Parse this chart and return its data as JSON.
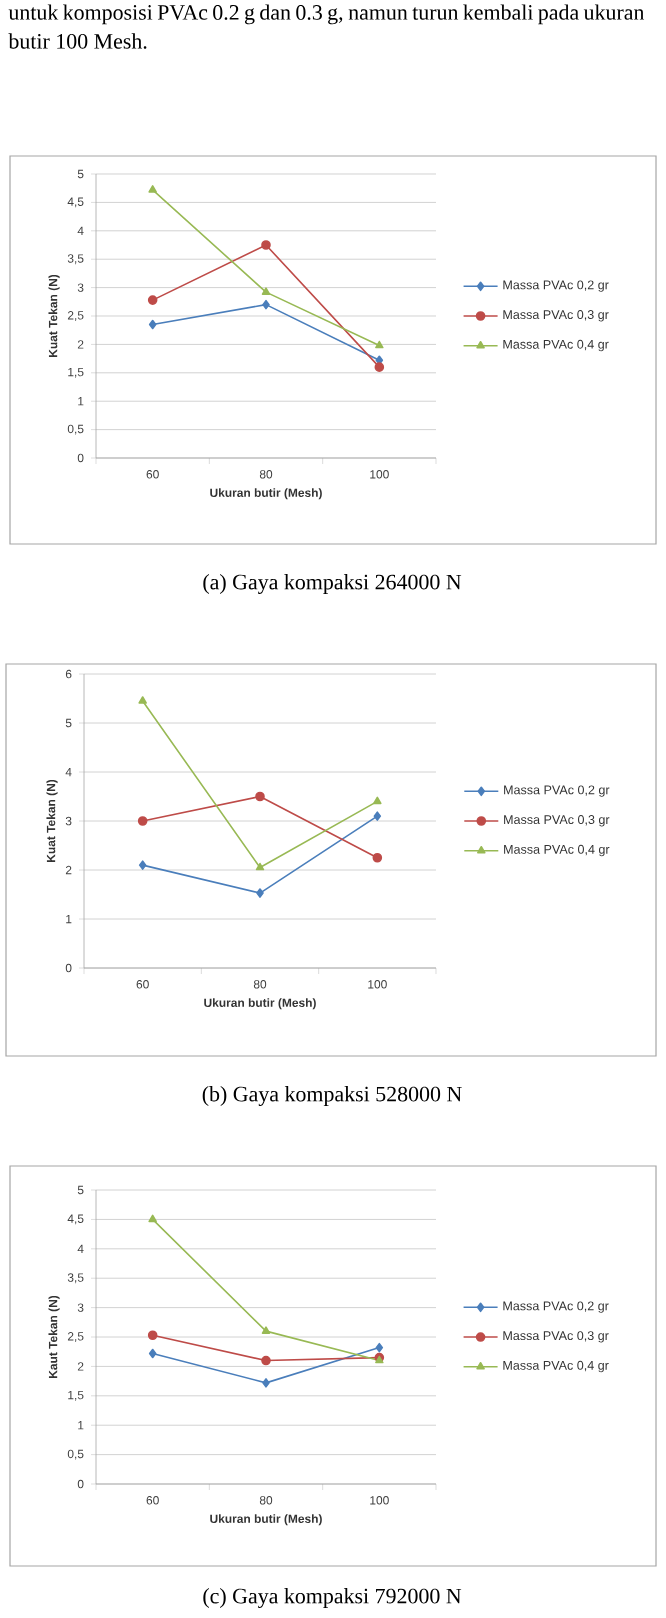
{
  "chart_data": [
    {
      "type": "line",
      "title": "(a)  Gaya kompaksi 264000 N",
      "annotations": [
        "untuk komposisi PVAc 0.2 g dan 0.3 g, namun turun kembali pada ukuran butir 100 Mesh."
      ],
      "xlabel": "Ukuran butir (Mesh)",
      "ylabel": "Kuat Tekan (N)",
      "categories": [
        "60",
        "80",
        "100"
      ],
      "series": [
        {
          "name": "Massa PVAc 0,2 gr",
          "color": "#4a7ebb",
          "marker": "diamond",
          "values": [
            2.35,
            2.7,
            1.72
          ]
        },
        {
          "name": "Massa PVAc 0,3 gr",
          "color": "#be4b48",
          "marker": "circle",
          "values": [
            2.78,
            3.75,
            1.6
          ]
        },
        {
          "name": "Massa PVAc 0,4 gr",
          "color": "#98b954",
          "marker": "triangle",
          "values": [
            4.72,
            2.92,
            1.98
          ]
        }
      ],
      "ylim": [
        0,
        5
      ],
      "yticks": [
        0,
        {
          "value": 0.5,
          "label": "0,5"
        },
        1,
        {
          "value": 1.5,
          "label": "1,5"
        },
        2,
        {
          "value": 2.5,
          "label": "2,5"
        },
        3,
        {
          "value": 3.5,
          "label": "3,5"
        },
        4,
        {
          "value": 4.5,
          "label": "4,5"
        },
        5
      ],
      "grid": "y",
      "legend": "right"
    },
    {
      "type": "line",
      "title": "(b)  Gaya kompaksi 528000 N",
      "xlabel": "Ukuran butir (Mesh)",
      "ylabel": "Kuat Tekan (N)",
      "categories": [
        "60",
        "80",
        "100"
      ],
      "series": [
        {
          "name": "Massa PVAc 0,2 gr",
          "color": "#4a7ebb",
          "marker": "diamond",
          "values": [
            2.1,
            1.53,
            3.1
          ]
        },
        {
          "name": "Massa PVAc 0,3 gr",
          "color": "#be4b48",
          "marker": "circle",
          "values": [
            3.0,
            3.5,
            2.25
          ]
        },
        {
          "name": "Massa PVAc 0,4 gr",
          "color": "#98b954",
          "marker": "triangle",
          "values": [
            5.45,
            2.05,
            3.4
          ]
        }
      ],
      "ylim": [
        0,
        6
      ],
      "yticks": [
        0,
        1,
        2,
        3,
        4,
        5,
        6
      ],
      "grid": "y",
      "legend": "right"
    },
    {
      "type": "line",
      "title": "(c)  Gaya kompaksi 792000 N",
      "xlabel": "Ukuran butir (Mesh)",
      "ylabel": "Kaut Tekan (N)",
      "categories": [
        "60",
        "80",
        "100"
      ],
      "series": [
        {
          "name": "Massa PVAc 0,2 gr",
          "color": "#4a7ebb",
          "marker": "diamond",
          "values": [
            2.22,
            1.72,
            2.32
          ]
        },
        {
          "name": "Massa PVAc 0,3 gr",
          "color": "#be4b48",
          "marker": "circle",
          "values": [
            2.53,
            2.1,
            2.15
          ]
        },
        {
          "name": "Massa PVAc 0,4 gr",
          "color": "#98b954",
          "marker": "triangle",
          "values": [
            4.5,
            2.6,
            2.1
          ]
        }
      ],
      "ylim": [
        0,
        5
      ],
      "yticks": [
        0,
        {
          "value": 0.5,
          "label": "0,5"
        },
        1,
        {
          "value": 1.5,
          "label": "1,5"
        },
        2,
        {
          "value": 2.5,
          "label": "2,5"
        },
        3,
        {
          "value": 3.5,
          "label": "3,5"
        },
        4,
        {
          "value": 4.5,
          "label": "4,5"
        },
        5
      ],
      "grid": "y",
      "legend": "right"
    }
  ]
}
